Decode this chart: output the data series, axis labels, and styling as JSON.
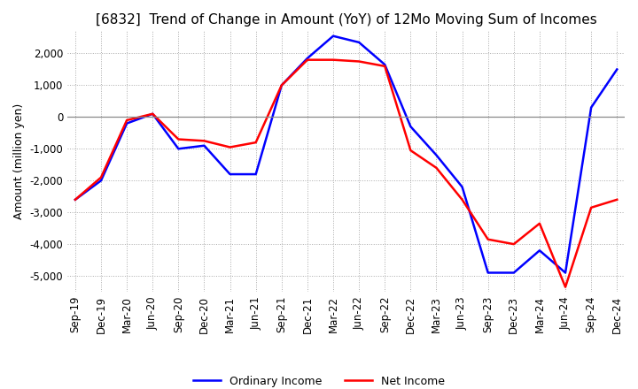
{
  "title": "[6832]  Trend of Change in Amount (YoY) of 12Mo Moving Sum of Incomes",
  "ylabel": "Amount (million yen)",
  "ylim": [
    -5500,
    2700
  ],
  "yticks": [
    2000,
    1000,
    0,
    -1000,
    -2000,
    -3000,
    -4000,
    -5000
  ],
  "x_labels": [
    "Sep-19",
    "Dec-19",
    "Mar-20",
    "Jun-20",
    "Sep-20",
    "Dec-20",
    "Mar-21",
    "Jun-21",
    "Sep-21",
    "Dec-21",
    "Mar-22",
    "Jun-22",
    "Sep-22",
    "Dec-22",
    "Mar-23",
    "Jun-23",
    "Sep-23",
    "Dec-23",
    "Mar-24",
    "Jun-24",
    "Sep-24",
    "Dec-24"
  ],
  "ordinary_income": [
    -2600,
    -2000,
    -200,
    100,
    -1000,
    -900,
    -1800,
    -1800,
    1000,
    1850,
    2550,
    2350,
    1650,
    -300,
    -1200,
    -2200,
    -4900,
    -4900,
    -4200,
    -4900,
    300,
    1500
  ],
  "net_income": [
    -2600,
    -1900,
    -100,
    100,
    -700,
    -750,
    -950,
    -800,
    1000,
    1800,
    1800,
    1750,
    1600,
    -1050,
    -1600,
    -2600,
    -3850,
    -4000,
    -3350,
    -5350,
    -2850,
    -2600
  ],
  "ordinary_color": "#0000ff",
  "net_color": "#ff0000",
  "line_width": 1.8,
  "grid_color": "#aaaaaa",
  "grid_style": "dotted",
  "zero_line_color": "#888888",
  "background_color": "#ffffff",
  "legend_labels": [
    "Ordinary Income",
    "Net Income"
  ],
  "title_fontsize": 11,
  "axis_fontsize": 8.5,
  "ylabel_fontsize": 9
}
